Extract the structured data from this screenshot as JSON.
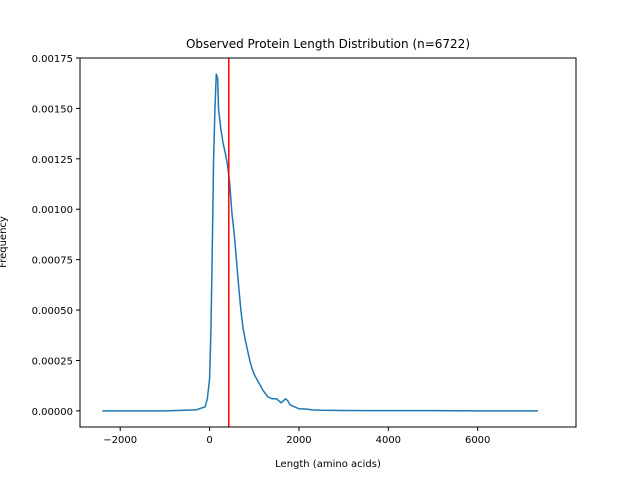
{
  "chart_data": {
    "type": "line",
    "title": "Observed Protein Length Distribution (n=6722)",
    "xlabel": "Length (amino acids)",
    "ylabel": "Frequency",
    "xlim": [
      -2900,
      8200
    ],
    "ylim": [
      -8e-05,
      0.00175
    ],
    "xticks": [
      -2000,
      0,
      2000,
      4000,
      6000
    ],
    "xtick_labels": [
      "−2000",
      "0",
      "2000",
      "4000",
      "6000"
    ],
    "yticks": [
      0,
      0.00025,
      0.0005,
      0.00075,
      0.001,
      0.00125,
      0.0015,
      0.00175
    ],
    "ytick_labels": [
      "0.00000",
      "0.00025",
      "0.00050",
      "0.00075",
      "0.00100",
      "0.00125",
      "0.00150",
      "0.00175"
    ],
    "grid": false,
    "legend": "none",
    "colors": {
      "series": "#1f77b4",
      "marker_line": "#ff0000"
    },
    "vertical_line": {
      "x": 430
    },
    "series": [
      {
        "x": [
          -2400,
          -1000,
          -300,
          -100,
          -50,
          0,
          30,
          60,
          90,
          120,
          150,
          180,
          200,
          250,
          300,
          350,
          400,
          450,
          500,
          550,
          600,
          650,
          700,
          750,
          800,
          850,
          900,
          950,
          1000,
          1100,
          1200,
          1300,
          1400,
          1500,
          1600,
          1650,
          1700,
          1750,
          1800,
          1900,
          2000,
          2100,
          2200,
          2300,
          2500,
          3000,
          3500,
          4000,
          5000,
          6000,
          7350
        ],
        "y": [
          0,
          0,
          5e-06,
          2e-05,
          6e-05,
          0.00016,
          0.0004,
          0.0008,
          0.00125,
          0.0015,
          0.00167,
          0.00165,
          0.0015,
          0.0014,
          0.00133,
          0.00128,
          0.00122,
          0.00113,
          0.00098,
          0.00088,
          0.00075,
          0.00062,
          0.0005,
          0.00041,
          0.00035,
          0.0003,
          0.00025,
          0.00021,
          0.00018,
          0.00014,
          0.0001,
          7e-05,
          6e-05,
          6e-05,
          4e-05,
          5e-05,
          6e-05,
          5e-05,
          3e-05,
          2e-05,
          1e-05,
          1e-05,
          8e-06,
          5e-06,
          3e-06,
          2e-06,
          1e-06,
          1e-06,
          1e-06,
          0,
          0
        ]
      }
    ]
  }
}
